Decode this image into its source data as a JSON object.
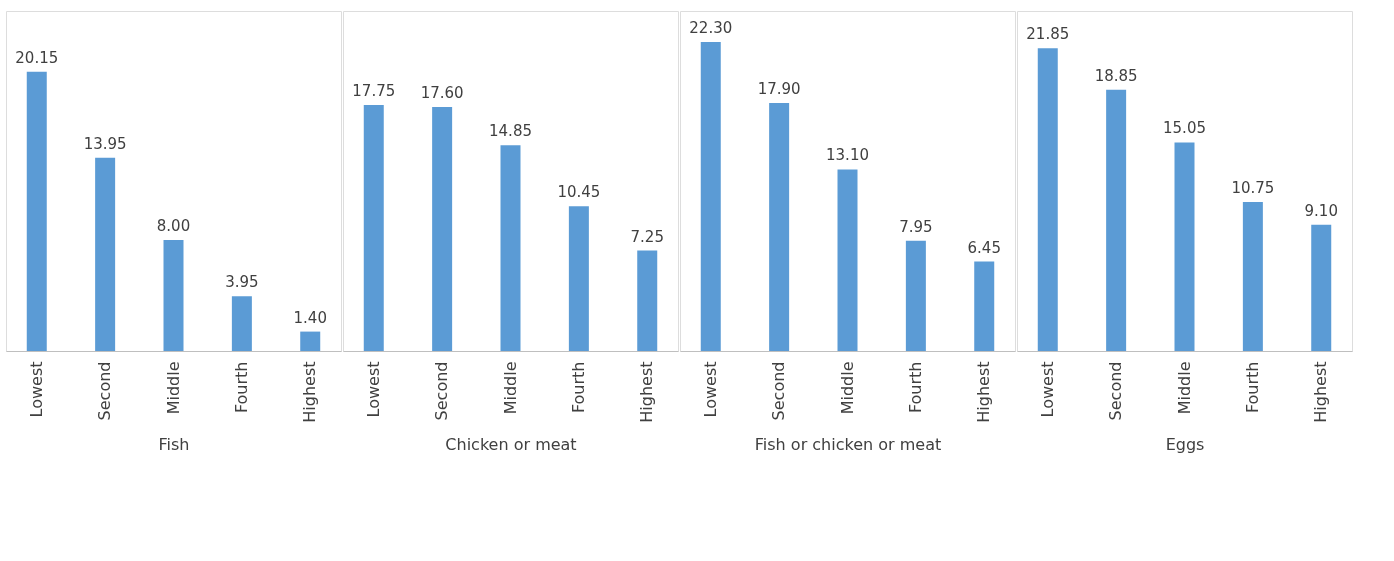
{
  "chart_data": [
    {
      "type": "bar",
      "xlabel": "Fish",
      "categories": [
        "Lowest",
        "Second",
        "Middle",
        "Fourth",
        "Highest"
      ],
      "values": [
        20.15,
        13.95,
        8.0,
        3.95,
        1.4
      ],
      "value_labels": [
        "20.15",
        "13.95",
        "8.00",
        "3.95",
        "1.40"
      ],
      "color": "#5b9bd5"
    },
    {
      "type": "bar",
      "xlabel": "Chicken or meat",
      "categories": [
        "Lowest",
        "Second",
        "Middle",
        "Fourth",
        "Highest"
      ],
      "values": [
        17.75,
        17.6,
        14.85,
        10.45,
        7.25
      ],
      "value_labels": [
        "17.75",
        "17.60",
        "14.85",
        "10.45",
        "7.25"
      ],
      "color": "#5b9bd5"
    },
    {
      "type": "bar",
      "xlabel": "Fish or chicken or meat",
      "categories": [
        "Lowest",
        "Second",
        "Middle",
        "Fourth",
        "Highest"
      ],
      "values": [
        22.3,
        17.9,
        13.1,
        7.95,
        6.45
      ],
      "value_labels": [
        "22.30",
        "17.90",
        "13.10",
        "7.95",
        "6.45"
      ],
      "color": "#5b9bd5"
    },
    {
      "type": "bar",
      "xlabel": "Eggs",
      "categories": [
        "Lowest",
        "Second",
        "Middle",
        "Fourth",
        "Highest"
      ],
      "values": [
        21.85,
        18.85,
        15.05,
        10.75,
        9.1
      ],
      "value_labels": [
        "21.85",
        "18.85",
        "15.05",
        "10.75",
        "9.10"
      ],
      "color": "#5b9bd5"
    }
  ]
}
